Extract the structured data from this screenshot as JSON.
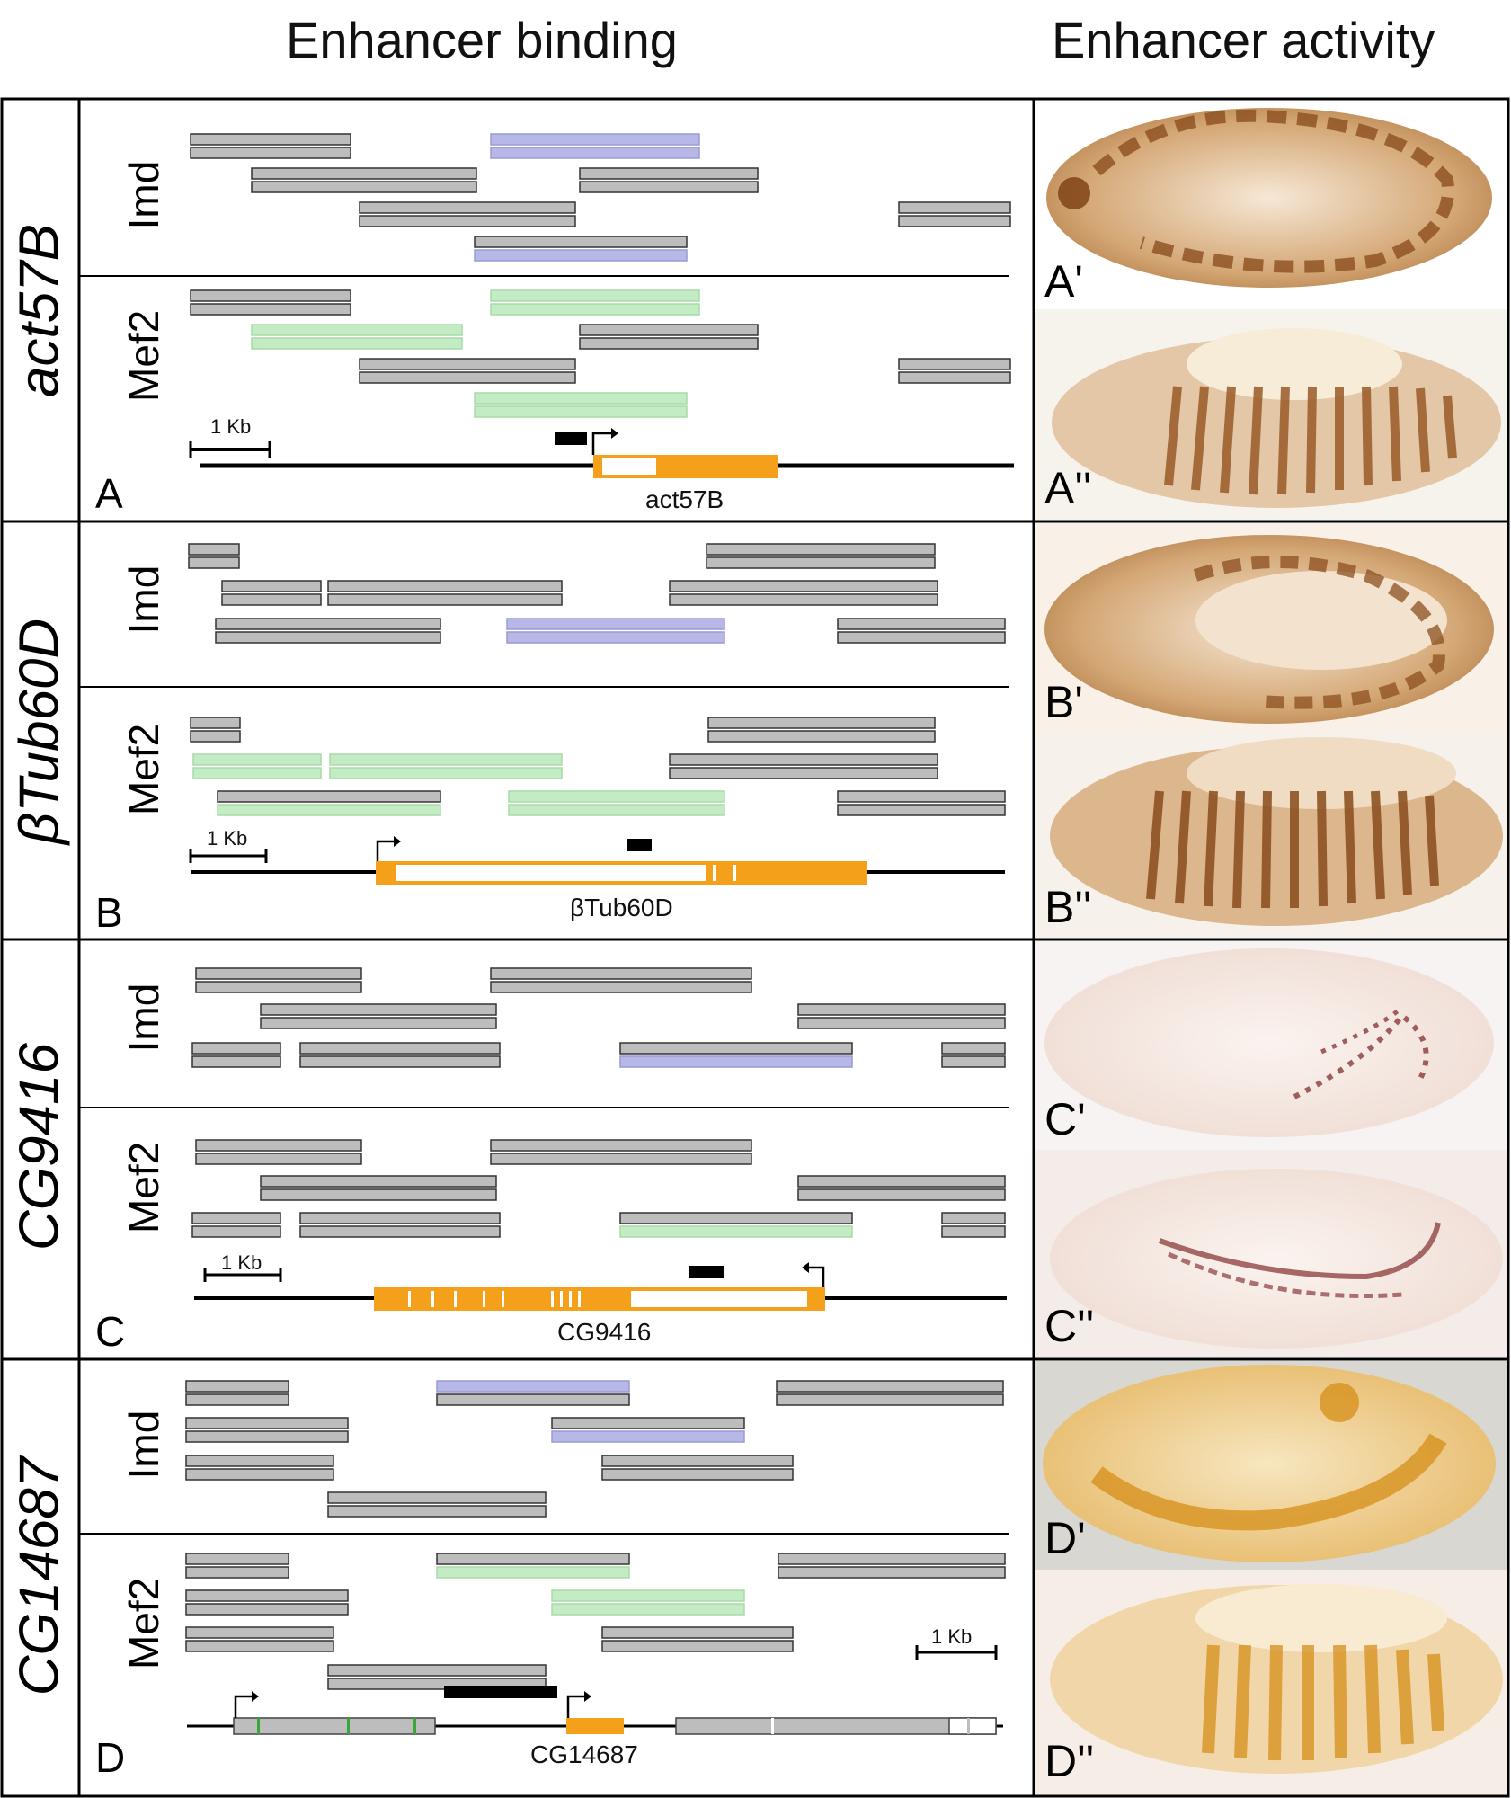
{
  "headers": {
    "binding": "Enhancer binding",
    "activity": "Enhancer activity"
  },
  "colors": {
    "gray_bar": "#bdbdbd",
    "imd_highlight": "#b8b8e8",
    "mef2_highlight": "#c4ecc4",
    "exon": "#f5a01a",
    "panel_bg_warm": "#f3e7dd",
    "embryo_brown": "#a86a34"
  },
  "scale_bar_label": "1 Kb",
  "panels": [
    {
      "id": "A",
      "gene": "act57B",
      "gene_label": "act57B",
      "tracks": [
        "Imd",
        "Mef2"
      ],
      "images": [
        "A'",
        "A''"
      ]
    },
    {
      "id": "B",
      "gene": "βTub60D",
      "gene_label": "βTub60D",
      "tracks": [
        "Imd",
        "Mef2"
      ],
      "images": [
        "B'",
        "B''"
      ]
    },
    {
      "id": "C",
      "gene": "CG9416",
      "gene_label": "CG9416",
      "tracks": [
        "Imd",
        "Mef2"
      ],
      "images": [
        "C'",
        "C''"
      ]
    },
    {
      "id": "D",
      "gene": "CG14687",
      "gene_label": "CG14687",
      "tracks": [
        "Imd",
        "Mef2"
      ],
      "images": [
        "D'",
        "D''"
      ]
    }
  ]
}
